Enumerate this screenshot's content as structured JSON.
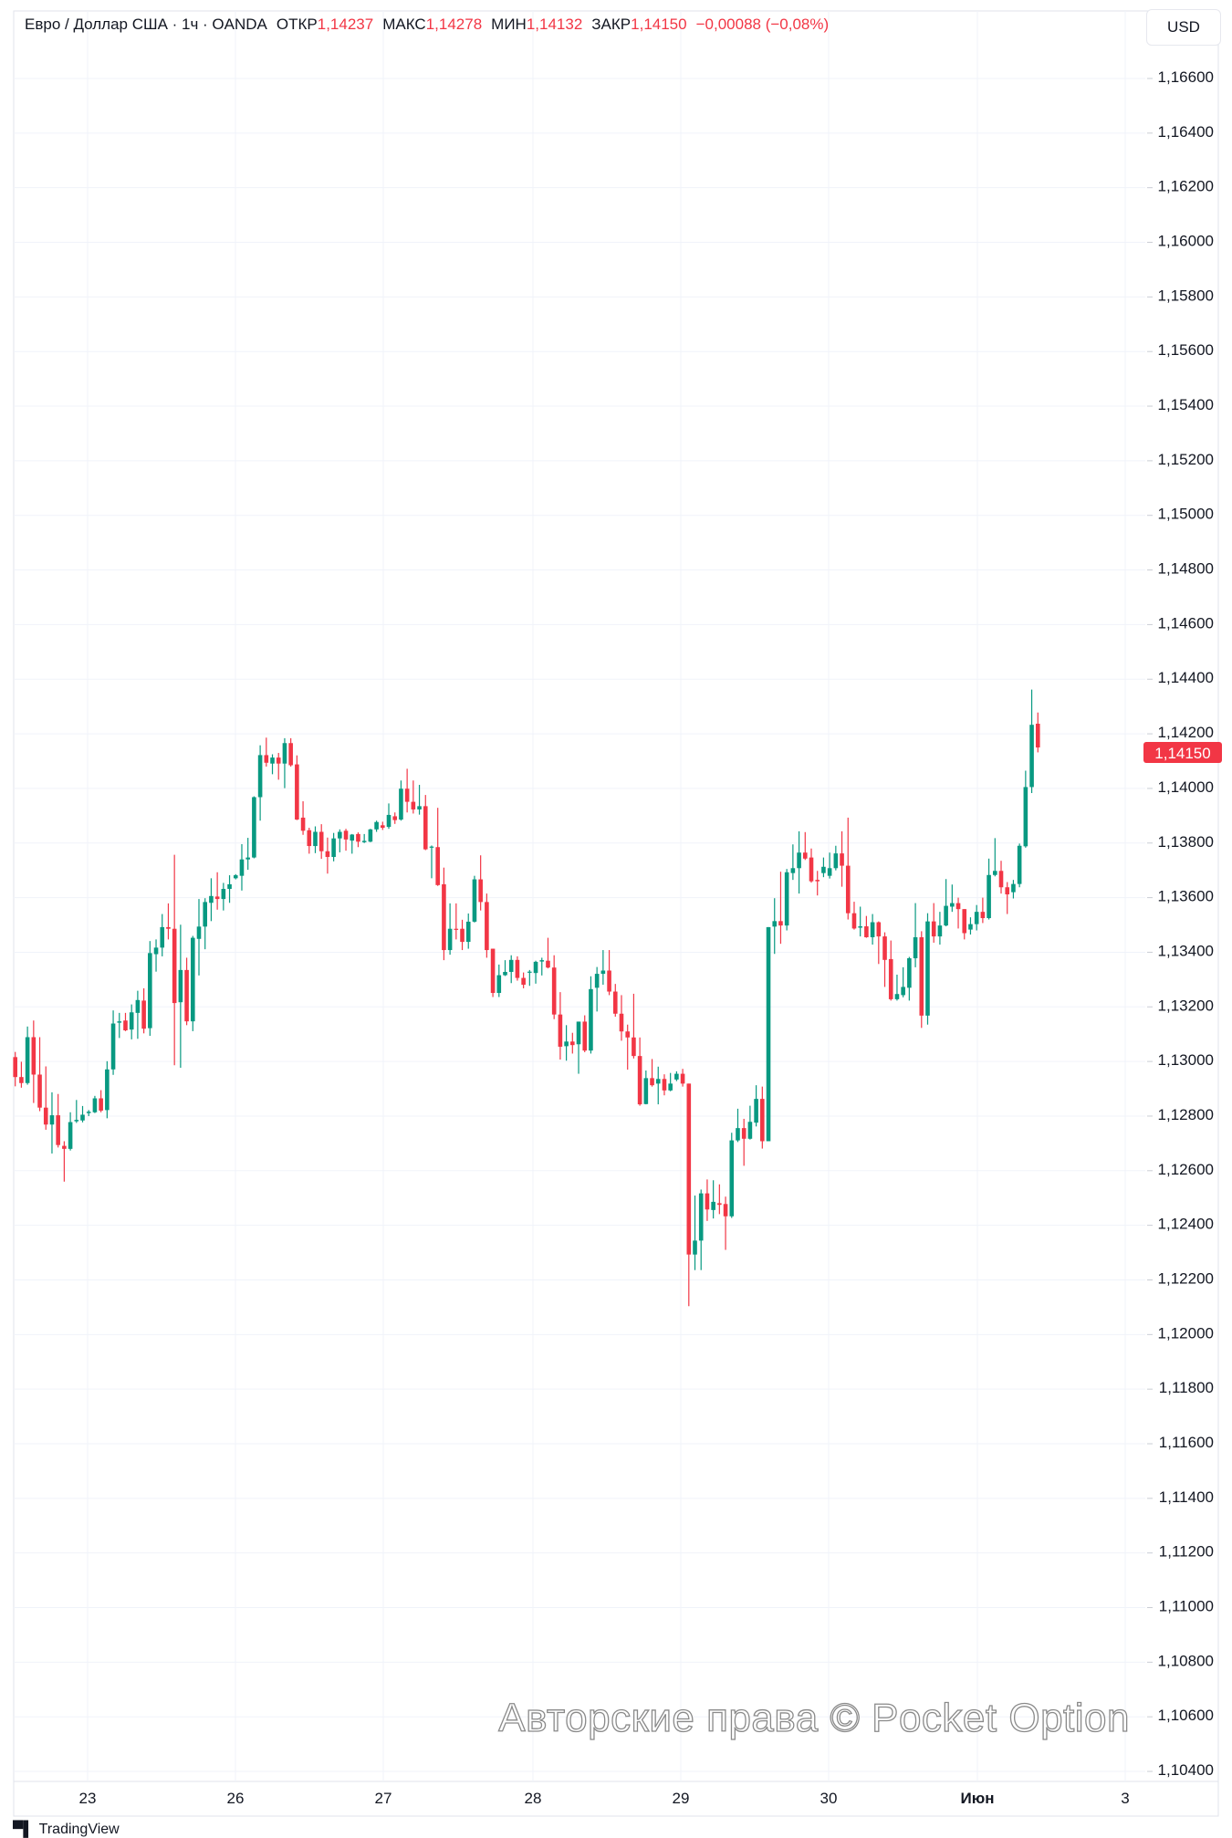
{
  "header": {
    "symbol": "Евро / Доллар США · 1ч · OANDA",
    "open_label": "ОТКР",
    "open": "1,14237",
    "high_label": "МАКС",
    "high": "1,14278",
    "low_label": "МИН",
    "low": "1,14132",
    "close_label": "ЗАКР",
    "close": "1,14150",
    "change": "−0,00088 (−0,08%)"
  },
  "currency_button": "USD",
  "watermark": "Авторские права © Pocket Option",
  "logo": "TradingView",
  "colors": {
    "up": "#089981",
    "down": "#F23645",
    "grid": "#f0f3fa",
    "text": "#131722"
  },
  "chart_data": {
    "type": "candlestick",
    "title": "",
    "ylim": [
      1.104,
      1.166
    ],
    "grid": true,
    "y_ticks": [
      "1,16600",
      "1,16400",
      "1,16200",
      "1,16000",
      "1,15800",
      "1,15600",
      "1,15400",
      "1,15200",
      "1,15000",
      "1,14800",
      "1,14600",
      "1,14400",
      "1,14200",
      "1,14000",
      "1,13800",
      "1,13600",
      "1,13400",
      "1,13200",
      "1,13000",
      "1,12800",
      "1,12600",
      "1,12400",
      "1,12200",
      "1,12000",
      "1,11800",
      "1,11600",
      "1,11400",
      "1,11200",
      "1,11000",
      "1,10800",
      "1,10600",
      "1,10400"
    ],
    "x_ticks": [
      "23",
      "26",
      "27",
      "28",
      "29",
      "30",
      "Июн",
      "3"
    ],
    "last_price": "1,14150",
    "last_price_value": 1.1415,
    "ohlc": [
      [
        1.13016,
        1.13035,
        1.12909,
        1.12943
      ],
      [
        1.12943,
        1.12999,
        1.12904,
        1.12921
      ],
      [
        1.12921,
        1.13128,
        1.12915,
        1.13089
      ],
      [
        1.13089,
        1.1315,
        1.12848,
        1.12952
      ],
      [
        1.12952,
        1.13089,
        1.12818,
        1.12831
      ],
      [
        1.12831,
        1.12982,
        1.1275,
        1.12769
      ],
      [
        1.12769,
        1.12887,
        1.12663,
        1.12803
      ],
      [
        1.12803,
        1.12881,
        1.12685,
        1.12694
      ],
      [
        1.12691,
        1.12708,
        1.1256,
        1.1268
      ],
      [
        1.1268,
        1.12814,
        1.12674,
        1.12778
      ],
      [
        1.12781,
        1.12859,
        1.12775,
        1.12786
      ],
      [
        1.12784,
        1.12837,
        1.12777,
        1.12805
      ],
      [
        1.12811,
        1.12822,
        1.128,
        1.12816
      ],
      [
        1.12814,
        1.12874,
        1.12811,
        1.12865
      ],
      [
        1.12865,
        1.12895,
        1.12814,
        1.1282
      ],
      [
        1.12822,
        1.13001,
        1.12792,
        1.12971
      ],
      [
        1.12971,
        1.13187,
        1.12951,
        1.13139
      ],
      [
        1.13142,
        1.13178,
        1.13086,
        1.13147
      ],
      [
        1.1315,
        1.13178,
        1.13111,
        1.13114
      ],
      [
        1.13117,
        1.13209,
        1.13081,
        1.1318
      ],
      [
        1.13178,
        1.13259,
        1.13083,
        1.13225
      ],
      [
        1.13223,
        1.13268,
        1.13103,
        1.1312
      ],
      [
        1.13122,
        1.13441,
        1.13094,
        1.13397
      ],
      [
        1.13393,
        1.13447,
        1.13329,
        1.13417
      ],
      [
        1.13417,
        1.1354,
        1.13385,
        1.13492
      ],
      [
        1.13492,
        1.13579,
        1.13447,
        1.13486
      ],
      [
        1.13486,
        1.13757,
        1.12986,
        1.13214
      ],
      [
        1.13217,
        1.13501,
        1.12977,
        1.13335
      ],
      [
        1.13335,
        1.1338,
        1.13133,
        1.13147
      ],
      [
        1.13147,
        1.1346,
        1.13111,
        1.13453
      ],
      [
        1.13449,
        1.13595,
        1.13315,
        1.13494
      ],
      [
        1.13494,
        1.13598,
        1.13411,
        1.13584
      ],
      [
        1.13581,
        1.13671,
        1.13514,
        1.13606
      ],
      [
        1.13604,
        1.13693,
        1.13556,
        1.13595
      ],
      [
        1.13595,
        1.13654,
        1.13553,
        1.13632
      ],
      [
        1.13632,
        1.13682,
        1.13581,
        1.13649
      ],
      [
        1.13671,
        1.13686,
        1.13667,
        1.13682
      ],
      [
        1.1368,
        1.13796,
        1.13626,
        1.1374
      ],
      [
        1.1374,
        1.13819,
        1.13702,
        1.13747
      ],
      [
        1.13747,
        1.13971,
        1.13744,
        1.13968
      ],
      [
        1.13968,
        1.14158,
        1.13882,
        1.14122
      ],
      [
        1.14122,
        1.14186,
        1.1408,
        1.14094
      ],
      [
        1.14091,
        1.14125,
        1.14052,
        1.14113
      ],
      [
        1.14113,
        1.1413,
        1.14032,
        1.14091
      ],
      [
        1.14091,
        1.14184,
        1.14001,
        1.14166
      ],
      [
        1.14166,
        1.14184,
        1.1408,
        1.14085
      ],
      [
        1.14088,
        1.14121,
        1.13884,
        1.13886
      ],
      [
        1.13893,
        1.13953,
        1.1383,
        1.13845
      ],
      [
        1.13847,
        1.13856,
        1.13761,
        1.13789
      ],
      [
        1.13789,
        1.13861,
        1.13763,
        1.13841
      ],
      [
        1.13841,
        1.13869,
        1.13742,
        1.1377
      ],
      [
        1.1377,
        1.1382,
        1.13688,
        1.13749
      ],
      [
        1.13749,
        1.13837,
        1.13733,
        1.13817
      ],
      [
        1.13817,
        1.1385,
        1.13766,
        1.13841
      ],
      [
        1.13845,
        1.13852,
        1.13772,
        1.13813
      ],
      [
        1.13809,
        1.13833,
        1.13761,
        1.13831
      ],
      [
        1.13833,
        1.13839,
        1.13785,
        1.13805
      ],
      [
        1.13803,
        1.13833,
        1.138,
        1.13808
      ],
      [
        1.13805,
        1.13852,
        1.13803,
        1.1385
      ],
      [
        1.1385,
        1.13882,
        1.13841,
        1.13877
      ],
      [
        1.13865,
        1.13878,
        1.13848,
        1.13856
      ],
      [
        1.13859,
        1.13945,
        1.13852,
        1.13903
      ],
      [
        1.13898,
        1.13912,
        1.1387,
        1.13884
      ],
      [
        1.13886,
        1.14029,
        1.13882,
        1.13999
      ],
      [
        1.13999,
        1.14072,
        1.13912,
        1.13951
      ],
      [
        1.13951,
        1.14029,
        1.13908,
        1.13923
      ],
      [
        1.13923,
        1.14013,
        1.13904,
        1.13935
      ],
      [
        1.13935,
        1.13976,
        1.13774,
        1.13777
      ],
      [
        1.13785,
        1.13791,
        1.13671,
        1.13787
      ],
      [
        1.13785,
        1.13929,
        1.13643,
        1.13646
      ],
      [
        1.13649,
        1.1371,
        1.13371,
        1.13408
      ],
      [
        1.13408,
        1.13579,
        1.13391,
        1.13486
      ],
      [
        1.13486,
        1.13579,
        1.13447,
        1.13484
      ],
      [
        1.13486,
        1.13519,
        1.13408,
        1.13438
      ],
      [
        1.13438,
        1.13542,
        1.13413,
        1.13512
      ],
      [
        1.13512,
        1.1368,
        1.13509,
        1.13667
      ],
      [
        1.13667,
        1.13755,
        1.13553,
        1.13584
      ],
      [
        1.13584,
        1.13615,
        1.1338,
        1.13408
      ],
      [
        1.13413,
        1.13413,
        1.13236,
        1.13251
      ],
      [
        1.13251,
        1.13355,
        1.13236,
        1.13316
      ],
      [
        1.13316,
        1.13371,
        1.13313,
        1.13328
      ],
      [
        1.13328,
        1.13389,
        1.13287,
        1.13372
      ],
      [
        1.13372,
        1.13385,
        1.13296,
        1.13306
      ],
      [
        1.13306,
        1.13326,
        1.13268,
        1.13281
      ],
      [
        1.13326,
        1.13335,
        1.13277,
        1.13329
      ],
      [
        1.13324,
        1.13369,
        1.13285,
        1.13365
      ],
      [
        1.13366,
        1.1338,
        1.13315,
        1.13371
      ],
      [
        1.13369,
        1.13453,
        1.13341,
        1.13344
      ],
      [
        1.13344,
        1.13389,
        1.13155,
        1.13172
      ],
      [
        1.13172,
        1.13254,
        1.13007,
        1.13054
      ],
      [
        1.13056,
        1.13133,
        1.13003,
        1.13073
      ],
      [
        1.13073,
        1.13105,
        1.13029,
        1.1306
      ],
      [
        1.13063,
        1.13146,
        1.12955,
        1.13146
      ],
      [
        1.13146,
        1.13169,
        1.13034,
        1.1304
      ],
      [
        1.1304,
        1.13312,
        1.13029,
        1.13265
      ],
      [
        1.1327,
        1.13346,
        1.13183,
        1.13321
      ],
      [
        1.13321,
        1.13408,
        1.13281,
        1.13333
      ],
      [
        1.13333,
        1.13408,
        1.13243,
        1.13256
      ],
      [
        1.13256,
        1.13284,
        1.13164,
        1.13175
      ],
      [
        1.13175,
        1.13243,
        1.13076,
        1.1311
      ],
      [
        1.1311,
        1.13135,
        1.1297,
        1.13088
      ],
      [
        1.13088,
        1.13248,
        1.13011,
        1.1302
      ],
      [
        1.1302,
        1.13088,
        1.12838,
        1.12843
      ],
      [
        1.12844,
        1.12967,
        1.12843,
        1.12939
      ],
      [
        1.12939,
        1.13009,
        1.12908,
        1.12913
      ],
      [
        1.12919,
        1.12981,
        1.12843,
        1.12936
      ],
      [
        1.12936,
        1.12953,
        1.12876,
        1.12894
      ],
      [
        1.12894,
        1.12958,
        1.12891,
        1.12919
      ],
      [
        1.12934,
        1.12964,
        1.12928,
        1.12955
      ],
      [
        1.12955,
        1.12973,
        1.12908,
        1.12919
      ],
      [
        1.12919,
        1.12919,
        1.12104,
        1.12293
      ],
      [
        1.12293,
        1.12509,
        1.12236,
        1.12344
      ],
      [
        1.12344,
        1.12531,
        1.12236,
        1.12517
      ],
      [
        1.12517,
        1.12568,
        1.12416,
        1.12458
      ],
      [
        1.12456,
        1.12565,
        1.12425,
        1.12486
      ],
      [
        1.12481,
        1.1255,
        1.12441,
        1.12475
      ],
      [
        1.12478,
        1.12505,
        1.1231,
        1.12433
      ],
      [
        1.12433,
        1.12739,
        1.12427,
        1.12711
      ],
      [
        1.12711,
        1.12827,
        1.12705,
        1.12756
      ],
      [
        1.12756,
        1.1279,
        1.12618,
        1.12717
      ],
      [
        1.12717,
        1.12838,
        1.12714,
        1.12779
      ],
      [
        1.12776,
        1.12913,
        1.12762,
        1.12863
      ],
      [
        1.12863,
        1.12908,
        1.12681,
        1.12708
      ],
      [
        1.12708,
        1.13492,
        1.12708,
        1.13492
      ],
      [
        1.13494,
        1.13598,
        1.13394,
        1.13514
      ],
      [
        1.13514,
        1.13695,
        1.13431,
        1.13498
      ],
      [
        1.13498,
        1.13705,
        1.1348,
        1.13693
      ],
      [
        1.1369,
        1.13795,
        1.13665,
        1.13708
      ],
      [
        1.13708,
        1.13843,
        1.13615,
        1.13765
      ],
      [
        1.13765,
        1.1384,
        1.13738,
        1.13743
      ],
      [
        1.13747,
        1.1378,
        1.13655,
        1.1366
      ],
      [
        1.13665,
        1.13698,
        1.13608,
        1.1366
      ],
      [
        1.1369,
        1.13747,
        1.13675,
        1.13713
      ],
      [
        1.1368,
        1.13765,
        1.1367,
        1.13708
      ],
      [
        1.13708,
        1.1379,
        1.137,
        1.13762
      ],
      [
        1.13762,
        1.13843,
        1.1364,
        1.13717
      ],
      [
        1.13717,
        1.13893,
        1.1352,
        1.13543
      ],
      [
        1.13543,
        1.13585,
        1.13483,
        1.13487
      ],
      [
        1.1349,
        1.13567,
        1.13458,
        1.13495
      ],
      [
        1.13495,
        1.13533,
        1.13453,
        1.13455
      ],
      [
        1.13455,
        1.1354,
        1.13428,
        1.1351
      ],
      [
        1.1351,
        1.13513,
        1.13357,
        1.13458
      ],
      [
        1.13458,
        1.13473,
        1.13273,
        1.13372
      ],
      [
        1.13375,
        1.13443,
        1.13223,
        1.13228
      ],
      [
        1.13228,
        1.13318,
        1.13223,
        1.13247
      ],
      [
        1.13243,
        1.13345,
        1.13235,
        1.13273
      ],
      [
        1.1327,
        1.13383,
        1.13223,
        1.13378
      ],
      [
        1.13378,
        1.1358,
        1.13345,
        1.13455
      ],
      [
        1.13455,
        1.13477,
        1.13123,
        1.13168
      ],
      [
        1.13168,
        1.13543,
        1.13135,
        1.13513
      ],
      [
        1.13513,
        1.1358,
        1.13435,
        1.13458
      ],
      [
        1.13458,
        1.13548,
        1.13428,
        1.13498
      ],
      [
        1.13498,
        1.13668,
        1.13495,
        1.1357
      ],
      [
        1.13567,
        1.13648,
        1.13548,
        1.1358
      ],
      [
        1.1358,
        1.136,
        1.13487,
        1.13558
      ],
      [
        1.13558,
        1.13558,
        1.13447,
        1.1347
      ],
      [
        1.13483,
        1.13528,
        1.13465,
        1.13503
      ],
      [
        1.13503,
        1.13573,
        1.1348,
        1.13548
      ],
      [
        1.13548,
        1.136,
        1.13507,
        1.13525
      ],
      [
        1.13525,
        1.13743,
        1.1352,
        1.13683
      ],
      [
        1.13683,
        1.13818,
        1.13678,
        1.13698
      ],
      [
        1.13698,
        1.13735,
        1.13615,
        1.13638
      ],
      [
        1.13638,
        1.13657,
        1.1354,
        1.13612
      ],
      [
        1.1362,
        1.13665,
        1.13597,
        1.1365
      ],
      [
        1.1365,
        1.13798,
        1.13638,
        1.1379
      ],
      [
        1.13788,
        1.14065,
        1.13783,
        1.14005
      ],
      [
        1.14005,
        1.14362,
        1.13983,
        1.14233
      ],
      [
        1.14237,
        1.14278,
        1.14132,
        1.1415
      ]
    ]
  }
}
